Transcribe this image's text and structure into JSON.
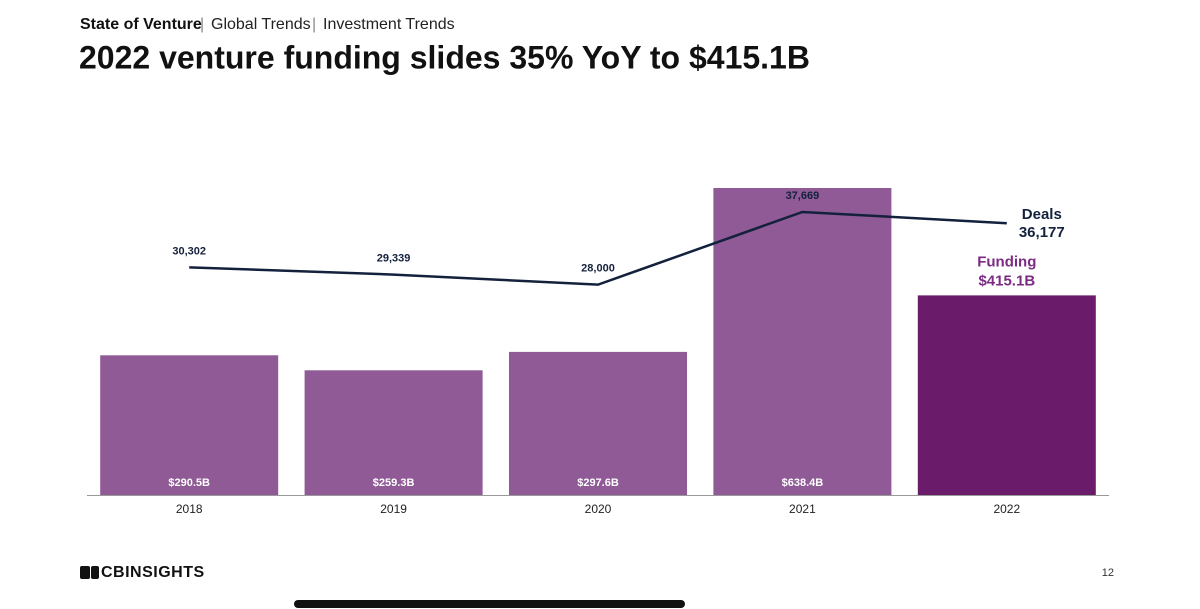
{
  "header": {
    "breadcrumb": [
      "State of Venture",
      "Global Trends",
      "Investment Trends"
    ]
  },
  "chart_data": {
    "type": "bar",
    "title": "2022 venture funding slides 35% YoY to $415.1B",
    "categories": [
      "2018",
      "2019",
      "2020",
      "2021",
      "2022"
    ],
    "series": [
      {
        "name": "Funding",
        "type": "bar",
        "colors": [
          "#8f5a96",
          "#8f5a96",
          "#8f5a96",
          "#8f5a96",
          "#6a1b6a"
        ],
        "label_color": "#7b2b83",
        "values": [
          290.5,
          259.3,
          297.6,
          638.4,
          415.1
        ],
        "value_labels": [
          "$290.5B",
          "$259.3B",
          "$297.6B",
          "$638.4B",
          "$415.1B"
        ]
      },
      {
        "name": "Deals",
        "type": "line",
        "color": "#14213d",
        "values": [
          30302,
          29339,
          28000,
          37669,
          36177
        ],
        "value_labels": [
          "30,302",
          "29,339",
          "28,000",
          "37,669",
          "36,177"
        ]
      }
    ]
  },
  "footer": {
    "logo": "CBINSIGHTS",
    "page": "12"
  }
}
